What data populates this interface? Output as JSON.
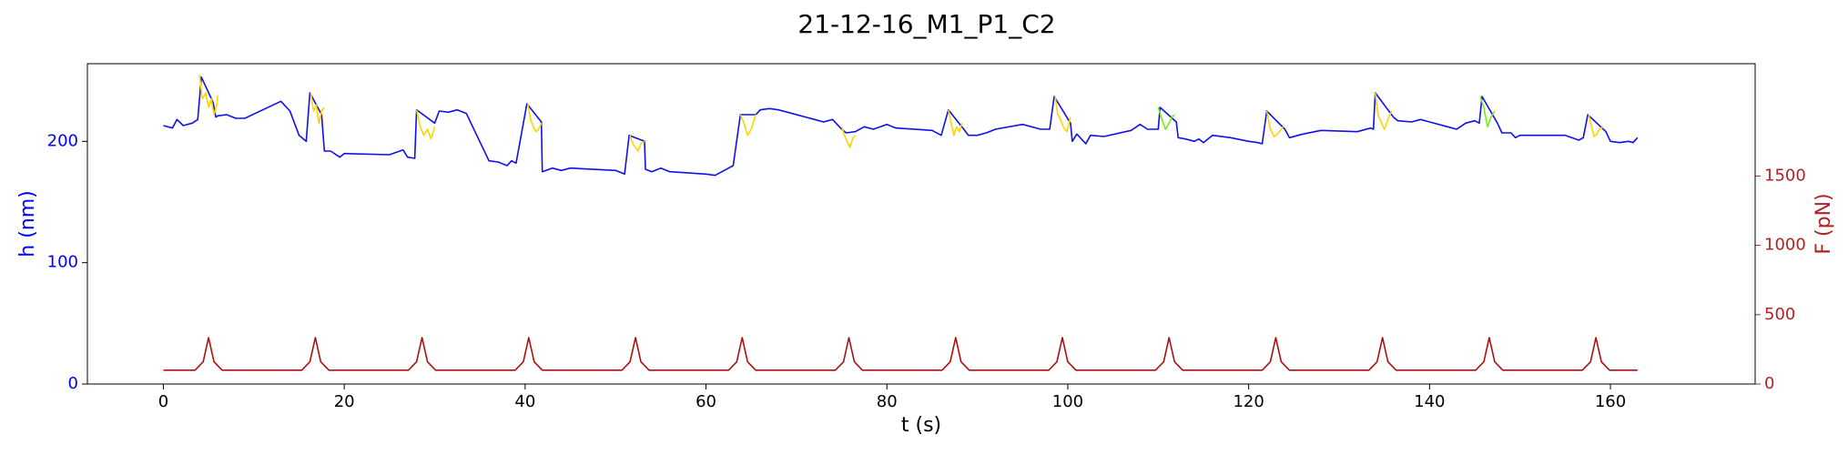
{
  "chart_data": {
    "type": "line",
    "title": "21-12-16_M1_P1_C2",
    "xlabel": "t (s)",
    "ylabel": "h (nm)",
    "y2label": "F (pN)",
    "xlim": [
      -8.4,
      176
    ],
    "ylim": [
      0,
      264
    ],
    "y2lim": [
      0,
      2310
    ],
    "xticks": [
      0,
      20,
      40,
      60,
      80,
      100,
      120,
      140,
      160
    ],
    "yticks": [
      0,
      100,
      200
    ],
    "y2ticks": [
      0,
      500,
      1000,
      1500
    ],
    "ylabel_color": "#0000ff",
    "y2label_color": "#b22222",
    "grid": false,
    "series": [
      {
        "color": "#1010ee",
        "axis": "y",
        "x": [
          0,
          1,
          1.5,
          2.2,
          3.2,
          3.8,
          4.2,
          5.5,
          5.8,
          6,
          7,
          8,
          9,
          13,
          14,
          15,
          15.8,
          16.2,
          17.5,
          17.8,
          18.5,
          19.5,
          20,
          25,
          26.5,
          27,
          27.8,
          28,
          30,
          30.5,
          31.5,
          32.5,
          33.5,
          36,
          37,
          38,
          38.5,
          39,
          40.2,
          41.8,
          41.9,
          43,
          44,
          45,
          50,
          51,
          51.5,
          53.2,
          53.3,
          54,
          55,
          56,
          60,
          61,
          62.5,
          63,
          63.8,
          65.5,
          66,
          67,
          68,
          72,
          73,
          74,
          74.5,
          75,
          75.5,
          76.5,
          77.5,
          78.5,
          80,
          81,
          85,
          86,
          86.8,
          88.5,
          89,
          90,
          91,
          92,
          95,
          97,
          98,
          98.5,
          100.3,
          100.5,
          101,
          102,
          102.5,
          104,
          107,
          108,
          108.8,
          110,
          110.2,
          112,
          112.2,
          113,
          114,
          114.5,
          115,
          116,
          118,
          120,
          121,
          121.5,
          122,
          124,
          124.5,
          126,
          128,
          132,
          133.5,
          133.8,
          134,
          136,
          136.5,
          138,
          139,
          140,
          142,
          143,
          144,
          145,
          145.5,
          145.8,
          147.5,
          148,
          149,
          149.5,
          150,
          155,
          156.5,
          157,
          157.5,
          159.5,
          160,
          161,
          162,
          162.5,
          163
        ],
        "values": [
          213,
          211,
          218,
          213,
          215,
          218,
          253,
          232,
          220,
          221,
          222,
          219,
          219,
          233,
          225,
          205,
          200,
          240,
          222,
          192,
          192,
          187,
          190,
          189,
          193,
          187,
          186,
          226,
          215,
          225,
          224,
          226,
          223,
          184,
          183,
          180,
          184,
          182,
          231,
          216,
          175,
          178,
          176,
          178,
          176,
          173,
          205,
          200,
          177,
          175,
          178,
          175,
          173,
          172,
          178,
          180,
          222,
          222,
          226,
          227,
          226,
          218,
          216,
          218,
          214,
          210,
          207,
          208,
          212,
          210,
          214,
          211,
          209,
          205,
          226,
          210,
          205,
          205,
          207,
          210,
          214,
          210,
          210,
          237,
          215,
          200,
          206,
          198,
          205,
          204,
          209,
          214,
          210,
          210,
          228,
          216,
          203,
          202,
          200,
          202,
          199,
          205,
          203,
          200,
          199,
          198,
          225,
          210,
          203,
          206,
          209,
          208,
          211,
          210,
          240,
          220,
          217,
          216,
          218,
          216,
          212,
          210,
          215,
          217,
          215,
          237,
          215,
          207,
          207,
          203,
          205,
          205,
          201,
          203,
          222,
          208,
          200,
          199,
          200,
          199,
          203
        ]
      },
      {
        "color": "#ffd400",
        "axis": "y",
        "x": [
          4,
          4.3,
          4.7,
          5,
          5.3,
          5.6,
          5.9,
          6,
          null,
          16.3,
          16.6,
          16.9,
          17.2,
          17.5,
          17.8,
          null,
          28,
          28.4,
          28.8,
          29.2,
          29.6,
          30,
          null,
          40.3,
          40.6,
          40.9,
          41.2,
          41.5,
          41.8,
          null,
          51.6,
          51.9,
          52.2,
          52.5,
          52.8,
          53.2,
          null,
          63.8,
          64.2,
          64.6,
          65,
          65.5,
          null,
          75,
          75.3,
          75.6,
          75.9,
          76.2,
          76.5,
          null,
          86.8,
          87.1,
          87.4,
          87.7,
          88,
          88.3,
          null,
          98.6,
          98.9,
          99.2,
          99.5,
          99.9,
          100.3,
          null,
          122,
          122.4,
          122.8,
          123.2,
          123.8,
          null,
          134,
          134.3,
          134.7,
          135,
          135.4,
          135.8,
          null,
          157.6,
          157.9,
          158.2,
          158.5,
          158.8,
          159.2
        ],
        "values": [
          255,
          235,
          240,
          228,
          235,
          222,
          230,
          238,
          null,
          240,
          225,
          230,
          215,
          225,
          228,
          null,
          226,
          212,
          205,
          210,
          202,
          212,
          null,
          231,
          218,
          212,
          208,
          210,
          215,
          null,
          205,
          198,
          195,
          192,
          198,
          200,
          null,
          222,
          215,
          205,
          210,
          222,
          null,
          212,
          205,
          200,
          195,
          202,
          205,
          null,
          226,
          215,
          205,
          212,
          208,
          215,
          null,
          237,
          222,
          218,
          212,
          208,
          220,
          null,
          225,
          210,
          204,
          206,
          212,
          null,
          240,
          222,
          215,
          210,
          218,
          225,
          null,
          222,
          212,
          204,
          206,
          210,
          212
        ]
      },
      {
        "color": "#77ee11",
        "axis": "y",
        "x": [
          110,
          110.4,
          110.8,
          111.2,
          111.5,
          111.8,
          null,
          145.6,
          146,
          146.4,
          146.8,
          147.2
        ],
        "values": [
          228,
          218,
          210,
          215,
          220,
          222,
          null,
          237,
          228,
          212,
          220,
          225
        ]
      },
      {
        "color": "#aa1111",
        "axis": "y2",
        "x": [
          0,
          3.5,
          4.4,
          5,
          5.6,
          6.5,
          15.3,
          16.2,
          16.8,
          17.4,
          18.3,
          27.1,
          28,
          28.6,
          29.2,
          30.1,
          38.9,
          39.8,
          40.4,
          41,
          41.9,
          50.7,
          51.6,
          52.2,
          52.8,
          53.7,
          62.5,
          63.4,
          64,
          64.6,
          65.5,
          74.3,
          75.2,
          75.8,
          76.4,
          77.3,
          86.1,
          87,
          87.6,
          88.2,
          89.1,
          97.9,
          98.8,
          99.4,
          100,
          100.9,
          109.7,
          110.6,
          111.2,
          111.8,
          112.7,
          121.5,
          122.4,
          123,
          123.6,
          124.5,
          133.3,
          134.2,
          134.8,
          135.4,
          136.3,
          145.1,
          146,
          146.6,
          147.2,
          148.1,
          156.9,
          157.8,
          158.4,
          159,
          159.9,
          163
        ],
        "values": [
          100,
          100,
          160,
          335,
          160,
          100,
          100,
          160,
          335,
          160,
          100,
          100,
          160,
          335,
          160,
          100,
          100,
          160,
          335,
          160,
          100,
          100,
          160,
          335,
          160,
          100,
          100,
          160,
          335,
          160,
          100,
          100,
          160,
          335,
          160,
          100,
          100,
          160,
          335,
          160,
          100,
          100,
          160,
          335,
          160,
          100,
          100,
          160,
          335,
          160,
          100,
          100,
          160,
          335,
          160,
          100,
          100,
          160,
          335,
          160,
          100,
          100,
          160,
          335,
          160,
          100,
          100,
          160,
          335,
          160,
          100,
          100
        ]
      }
    ]
  }
}
